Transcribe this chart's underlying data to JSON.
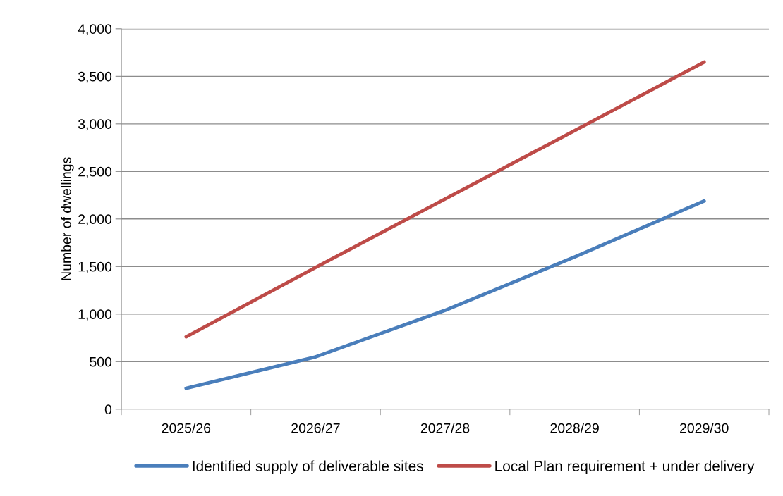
{
  "chart_data": {
    "type": "line",
    "ylabel": "Number of dwellings",
    "categories": [
      "2025/26",
      "2026/27",
      "2027/28",
      "2028/29",
      "2029/30"
    ],
    "series": [
      {
        "name": "Identified supply of deliverable sites",
        "color": "#4a7ebb",
        "values": [
          220,
          550,
          1040,
          1600,
          2190
        ]
      },
      {
        "name": "Local Plan requirement + under delivery",
        "color": "#be4b48",
        "values": [
          760,
          1490,
          2210,
          2930,
          3650
        ]
      }
    ],
    "ylim": [
      0,
      4000
    ],
    "yticks": [
      0,
      {
        "value": 500,
        "label": "500"
      },
      {
        "value": 1000,
        "label": "1,000"
      },
      {
        "value": 1500,
        "label": "1,500"
      },
      {
        "value": 2000,
        "label": "2,000"
      },
      {
        "value": 2500,
        "label": "2,500"
      },
      {
        "value": 3000,
        "label": "3,000"
      },
      {
        "value": 3500,
        "label": "3,500"
      },
      {
        "value": 4000,
        "label": "4,000"
      }
    ],
    "grid": "y",
    "legend": "bottom",
    "marker": "none",
    "line_style": "solid"
  }
}
